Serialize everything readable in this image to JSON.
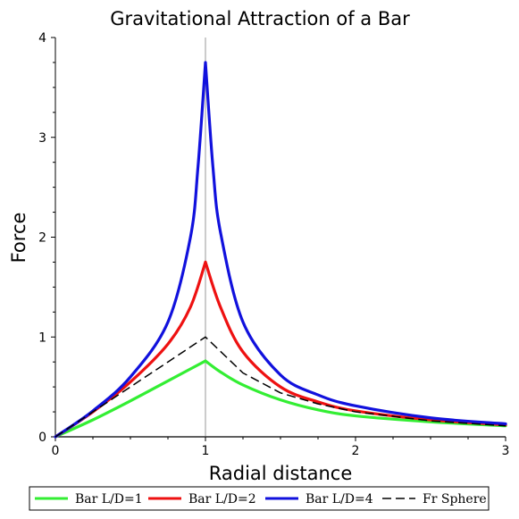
{
  "chart_data": {
    "type": "line",
    "title": "Gravitational Attraction of a Bar",
    "xlabel": "Radial distance",
    "ylabel": "Force",
    "xlim": [
      0,
      3
    ],
    "ylim": [
      0,
      4
    ],
    "x_ticks": [
      "0",
      "1",
      "2",
      "3"
    ],
    "y_ticks": [
      "0",
      "1",
      "2",
      "3",
      "4"
    ],
    "vertical_reference_line_x": 1,
    "legend_position": "bottom",
    "series": [
      {
        "name": "Bar L/D=1",
        "color": "#33ee33",
        "dash": "solid",
        "x": [
          0,
          0.25,
          0.5,
          0.75,
          0.9,
          1.0,
          1.1,
          1.25,
          1.5,
          1.75,
          2.0,
          2.5,
          3.0
        ],
        "y": [
          0,
          0.17,
          0.36,
          0.56,
          0.68,
          0.76,
          0.65,
          0.52,
          0.37,
          0.27,
          0.21,
          0.15,
          0.11
        ]
      },
      {
        "name": "Bar L/D=2",
        "color": "#ee1111",
        "dash": "solid",
        "x": [
          0,
          0.25,
          0.5,
          0.75,
          0.9,
          1.0,
          1.1,
          1.25,
          1.5,
          1.75,
          2.0,
          2.5,
          3.0
        ],
        "y": [
          0,
          0.25,
          0.55,
          0.93,
          1.3,
          1.75,
          1.3,
          0.85,
          0.5,
          0.35,
          0.26,
          0.17,
          0.12
        ]
      },
      {
        "name": "Bar L/D=4",
        "color": "#1111dd",
        "dash": "solid",
        "x": [
          0,
          0.25,
          0.5,
          0.75,
          0.9,
          0.95,
          1.0,
          1.05,
          1.1,
          1.25,
          1.5,
          1.75,
          2.0,
          2.5,
          3.0
        ],
        "y": [
          0,
          0.26,
          0.6,
          1.15,
          2.0,
          2.7,
          3.75,
          2.7,
          2.05,
          1.15,
          0.62,
          0.42,
          0.31,
          0.19,
          0.13
        ]
      },
      {
        "name": "Fr Sphere",
        "color": "#000000",
        "dash": "dashed",
        "x": [
          0,
          0.25,
          0.5,
          0.75,
          1.0,
          1.25,
          1.5,
          1.75,
          2.0,
          2.5,
          3.0
        ],
        "y": [
          0,
          0.25,
          0.5,
          0.75,
          1.0,
          0.64,
          0.44,
          0.33,
          0.25,
          0.16,
          0.11
        ]
      }
    ]
  }
}
